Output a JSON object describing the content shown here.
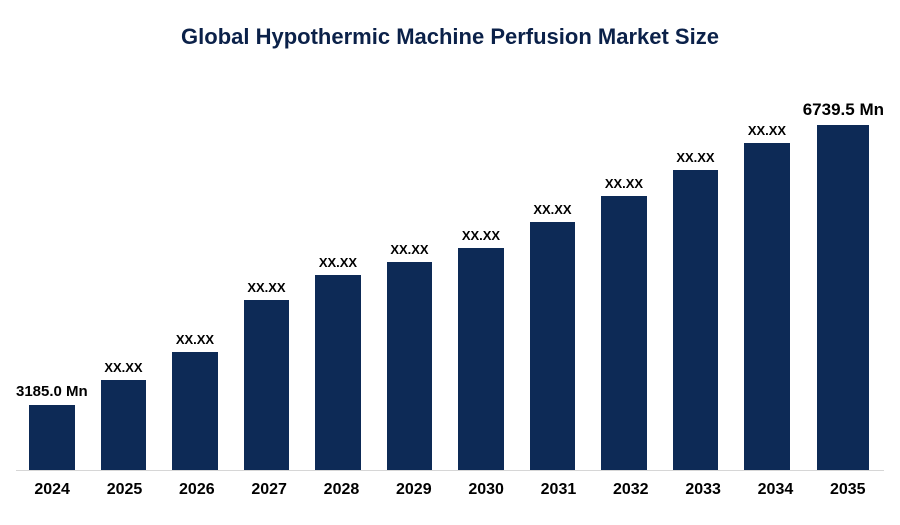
{
  "title": "Global Hypothermic Machine Perfusion Market Size",
  "chart_data": {
    "type": "bar",
    "title": "Global Hypothermic Machine Perfusion Market Size",
    "categories": [
      "2024",
      "2025",
      "2026",
      "2027",
      "2028",
      "2029",
      "2030",
      "2031",
      "2032",
      "2033",
      "2034",
      "2035"
    ],
    "bar_labels": [
      "3185.0 Mn",
      "XX.XX",
      "XX.XX",
      "XX.XX",
      "XX.XX",
      "XX.XX",
      "XX.XX",
      "XX.XX",
      "XX.XX",
      "XX.XX",
      "XX.XX",
      "6739.5 Mn"
    ],
    "values_known": {
      "2024": 3185.0,
      "2035": 6739.5
    },
    "unit": "Mn",
    "bar_heights_pct": [
      17.6,
      24.3,
      31.9,
      45.9,
      52.7,
      56.2,
      60.0,
      67.0,
      74.0,
      81.1,
      88.4,
      95.4
    ],
    "bar_color": "#0d2a56",
    "axis": {
      "x_ticks_visible": true,
      "y_axis_visible": false,
      "gridlines": false
    },
    "legend": "none"
  },
  "colors": {
    "bar": "#0d2a56",
    "title": "#0b2149",
    "label": "#000000",
    "baseline": "#d6d6d6",
    "background": "#ffffff"
  }
}
